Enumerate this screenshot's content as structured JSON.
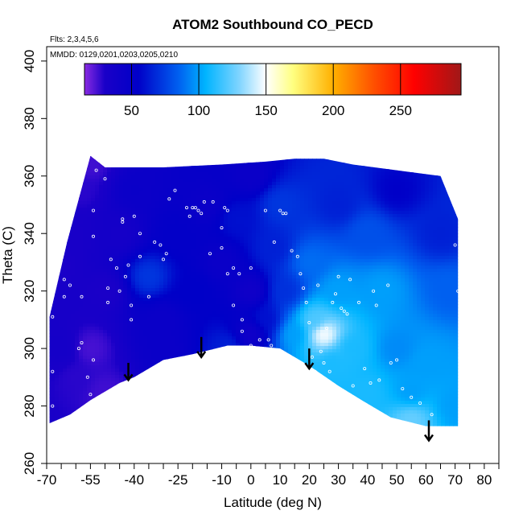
{
  "chart_data": {
    "type": "heatmap",
    "title": "ATOM2 Southbound CO_PECD",
    "flights_label": "Flts: 2,3,4,5,6",
    "dates_label": "MMDD: 0129,0201,0203,0205,0210",
    "xlabel": "Latitude (deg N)",
    "ylabel": "Theta (C)",
    "xlim": [
      -70,
      85
    ],
    "ylim": [
      260,
      405
    ],
    "x_ticks": [
      -70,
      -55,
      -40,
      -25,
      -10,
      0,
      10,
      20,
      30,
      40,
      50,
      60,
      70,
      80
    ],
    "x_minor_ticks": [
      -65,
      -60,
      -50,
      -45,
      -35,
      -30,
      -20,
      -15,
      -5,
      5,
      15,
      25,
      35,
      45,
      55,
      65,
      75,
      85
    ],
    "y_ticks": [
      260,
      280,
      300,
      320,
      340,
      360,
      380,
      400
    ],
    "colorbar": {
      "range": [
        15,
        295
      ],
      "ticks": [
        50,
        100,
        150,
        200,
        250
      ],
      "stops": [
        {
          "v": 15,
          "c": "#8a2be2"
        },
        {
          "v": 30,
          "c": "#1a00c8"
        },
        {
          "v": 55,
          "c": "#0000c8"
        },
        {
          "v": 85,
          "c": "#0060f0"
        },
        {
          "v": 105,
          "c": "#00b4ff"
        },
        {
          "v": 130,
          "c": "#7fd4ff"
        },
        {
          "v": 150,
          "c": "#ffffff"
        },
        {
          "v": 170,
          "c": "#ffff80"
        },
        {
          "v": 200,
          "c": "#ffb000"
        },
        {
          "v": 230,
          "c": "#ff5000"
        },
        {
          "v": 260,
          "c": "#ff0000"
        },
        {
          "v": 295,
          "c": "#a01818"
        }
      ]
    },
    "coverage": {
      "top": [
        [
          -69,
          311
        ],
        [
          -63,
          337
        ],
        [
          -55,
          367
        ],
        [
          -50,
          363
        ],
        [
          -30,
          363
        ],
        [
          -10,
          364
        ],
        [
          5,
          365
        ],
        [
          15,
          366
        ],
        [
          25,
          366
        ],
        [
          35,
          364
        ],
        [
          50,
          362
        ],
        [
          65,
          360
        ],
        [
          71,
          345
        ]
      ],
      "bottom": [
        [
          71,
          273
        ],
        [
          60,
          273
        ],
        [
          48,
          276
        ],
        [
          38,
          282
        ],
        [
          30,
          287
        ],
        [
          20,
          294
        ],
        [
          10,
          300
        ],
        [
          0,
          301
        ],
        [
          -8,
          301
        ],
        [
          -20,
          298
        ],
        [
          -30,
          296
        ],
        [
          -40,
          290
        ],
        [
          -45,
          288
        ],
        [
          -55,
          282
        ],
        [
          -62,
          277
        ],
        [
          -69,
          274
        ]
      ]
    },
    "field_points": [
      [
        -66,
        330,
        30
      ],
      [
        -62,
        338,
        32
      ],
      [
        -58,
        355,
        28
      ],
      [
        -55,
        364,
        25
      ],
      [
        -65,
        300,
        35
      ],
      [
        -60,
        290,
        28
      ],
      [
        -55,
        300,
        24
      ],
      [
        -50,
        320,
        30
      ],
      [
        -45,
        340,
        35
      ],
      [
        -40,
        355,
        45
      ],
      [
        -35,
        325,
        72
      ],
      [
        -30,
        310,
        45
      ],
      [
        -25,
        340,
        52
      ],
      [
        -20,
        320,
        55
      ],
      [
        -15,
        350,
        45
      ],
      [
        -10,
        330,
        45
      ],
      [
        -5,
        345,
        60
      ],
      [
        0,
        360,
        45
      ],
      [
        0,
        320,
        40
      ],
      [
        0,
        305,
        40
      ],
      [
        5,
        310,
        60
      ],
      [
        8,
        335,
        65
      ],
      [
        10,
        350,
        72
      ],
      [
        12,
        320,
        70
      ],
      [
        15,
        305,
        100
      ],
      [
        20,
        330,
        88
      ],
      [
        22,
        310,
        120
      ],
      [
        25,
        305,
        150
      ],
      [
        28,
        295,
        110
      ],
      [
        30,
        320,
        100
      ],
      [
        35,
        300,
        110
      ],
      [
        40,
        340,
        80
      ],
      [
        45,
        320,
        100
      ],
      [
        50,
        300,
        95
      ],
      [
        55,
        285,
        100
      ],
      [
        55,
        275,
        125
      ],
      [
        60,
        295,
        100
      ],
      [
        65,
        340,
        65
      ],
      [
        68,
        320,
        85
      ],
      [
        70,
        280,
        100
      ],
      [
        30,
        350,
        65
      ],
      [
        50,
        355,
        55
      ],
      [
        -50,
        285,
        25
      ],
      [
        -30,
        300,
        45
      ],
      [
        40,
        285,
        110
      ],
      [
        -8,
        300,
        65
      ]
    ],
    "sample_points": [
      [
        -68,
        292
      ],
      [
        -68,
        280
      ],
      [
        -68,
        311
      ],
      [
        -64,
        318
      ],
      [
        -64,
        324
      ],
      [
        -62,
        322
      ],
      [
        -59,
        300
      ],
      [
        -58,
        302
      ],
      [
        -58,
        318
      ],
      [
        -56,
        290
      ],
      [
        -55,
        284
      ],
      [
        -54,
        296
      ],
      [
        -54,
        339
      ],
      [
        -54,
        348
      ],
      [
        -53,
        362
      ],
      [
        -50,
        359
      ],
      [
        -49,
        321
      ],
      [
        -49,
        316
      ],
      [
        -48,
        331
      ],
      [
        -46,
        328
      ],
      [
        -45,
        320
      ],
      [
        -44,
        345
      ],
      [
        -44,
        344
      ],
      [
        -43,
        325
      ],
      [
        -42,
        329
      ],
      [
        -41,
        310
      ],
      [
        -41,
        315
      ],
      [
        -40,
        346
      ],
      [
        -38,
        340
      ],
      [
        -38,
        332
      ],
      [
        -35,
        318
      ],
      [
        -33,
        337
      ],
      [
        -31,
        336
      ],
      [
        -30,
        331
      ],
      [
        -29,
        333
      ],
      [
        -28,
        352
      ],
      [
        -26,
        355
      ],
      [
        -22,
        349
      ],
      [
        -21,
        346
      ],
      [
        -20,
        349
      ],
      [
        -19,
        349
      ],
      [
        -18,
        348
      ],
      [
        -17,
        347
      ],
      [
        -16,
        351
      ],
      [
        -14,
        333
      ],
      [
        -13,
        351
      ],
      [
        -10,
        342
      ],
      [
        -10,
        335
      ],
      [
        -9,
        349
      ],
      [
        -8,
        348
      ],
      [
        -8,
        326
      ],
      [
        -6,
        328
      ],
      [
        -6,
        315
      ],
      [
        -4,
        326
      ],
      [
        -3,
        310
      ],
      [
        -3,
        306
      ],
      [
        0,
        328
      ],
      [
        0,
        301
      ],
      [
        2,
        300
      ],
      [
        3,
        303
      ],
      [
        5,
        348
      ],
      [
        6,
        303
      ],
      [
        7,
        301
      ],
      [
        8,
        337
      ],
      [
        10,
        348
      ],
      [
        11,
        347
      ],
      [
        12,
        347
      ],
      [
        14,
        334
      ],
      [
        16,
        332
      ],
      [
        17,
        326
      ],
      [
        18,
        321
      ],
      [
        19,
        316
      ],
      [
        20,
        309
      ],
      [
        21,
        297
      ],
      [
        22,
        292
      ],
      [
        23,
        322
      ],
      [
        24,
        299
      ],
      [
        25,
        295
      ],
      [
        26,
        307
      ],
      [
        27,
        292
      ],
      [
        28,
        316
      ],
      [
        29,
        319
      ],
      [
        30,
        325
      ],
      [
        31,
        314
      ],
      [
        32,
        313
      ],
      [
        33,
        312
      ],
      [
        34,
        324
      ],
      [
        35,
        287
      ],
      [
        37,
        316
      ],
      [
        39,
        293
      ],
      [
        41,
        288
      ],
      [
        42,
        320
      ],
      [
        43,
        315
      ],
      [
        44,
        289
      ],
      [
        47,
        322
      ],
      [
        48,
        295
      ],
      [
        50,
        296
      ],
      [
        52,
        286
      ],
      [
        55,
        283
      ],
      [
        58,
        281
      ],
      [
        62,
        277
      ],
      [
        65,
        272
      ],
      [
        70,
        336
      ],
      [
        71,
        320
      ]
    ],
    "arrows": [
      {
        "lat": -42,
        "from": 295,
        "to": 289
      },
      {
        "lat": -17,
        "from": 304,
        "to": 297
      },
      {
        "lat": 20,
        "from": 300,
        "to": 293
      },
      {
        "lat": 61,
        "from": 275,
        "to": 268
      }
    ]
  }
}
